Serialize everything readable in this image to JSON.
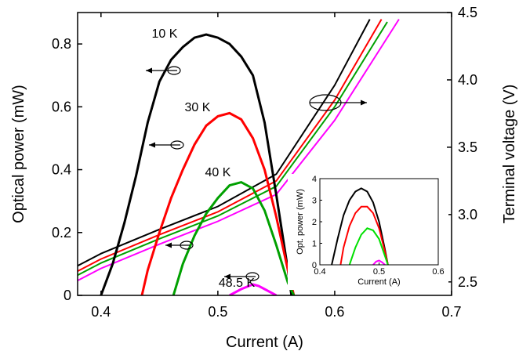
{
  "chart_data": [
    {
      "type": "line",
      "xlabel": "Current (A)",
      "ylabel_left": "Optical power (mW)",
      "ylabel_right": "Terminal voltage (V)",
      "xlim": [
        0.38,
        0.7
      ],
      "ylim_left": [
        0,
        0.9
      ],
      "ylim_right": [
        2.4,
        4.5
      ],
      "x_ticks": [
        "0.4",
        "0.5",
        "0.6",
        "0.7"
      ],
      "y_left_ticks": [
        "0",
        "0.2",
        "0.4",
        "0.6",
        "0.8"
      ],
      "y_right_ticks": [
        "2.5",
        "3.0",
        "3.5",
        "4.0",
        "4.5"
      ],
      "annotations": [
        "10 K",
        "30 K",
        "40 K",
        "48.5 K"
      ],
      "power_series": [
        {
          "color": "#000000",
          "x": [
            0.4,
            0.41,
            0.42,
            0.43,
            0.44,
            0.45,
            0.46,
            0.47,
            0.48,
            0.49,
            0.5,
            0.51,
            0.52,
            0.53,
            0.54,
            0.55,
            0.56,
            0.563
          ],
          "y": [
            0.0,
            0.1,
            0.23,
            0.38,
            0.55,
            0.68,
            0.75,
            0.79,
            0.82,
            0.83,
            0.82,
            0.8,
            0.76,
            0.7,
            0.55,
            0.32,
            0.08,
            0.0
          ]
        },
        {
          "color": "#ff0000",
          "x": [
            0.435,
            0.44,
            0.45,
            0.46,
            0.47,
            0.48,
            0.49,
            0.5,
            0.51,
            0.52,
            0.53,
            0.54,
            0.55,
            0.56,
            0.565
          ],
          "y": [
            0.0,
            0.08,
            0.2,
            0.31,
            0.4,
            0.48,
            0.54,
            0.57,
            0.58,
            0.56,
            0.5,
            0.4,
            0.25,
            0.08,
            0.0
          ]
        },
        {
          "color": "#00a000",
          "x": [
            0.462,
            0.47,
            0.48,
            0.49,
            0.5,
            0.51,
            0.52,
            0.53,
            0.54,
            0.55,
            0.56,
            0.565
          ],
          "y": [
            0.0,
            0.1,
            0.19,
            0.26,
            0.31,
            0.35,
            0.36,
            0.34,
            0.27,
            0.16,
            0.04,
            0.0
          ]
        },
        {
          "color": "#ff00ff",
          "x": [
            0.51,
            0.52,
            0.53,
            0.535,
            0.54,
            0.55
          ],
          "y": [
            0.0,
            0.02,
            0.035,
            0.03,
            0.02,
            0.0
          ]
        }
      ],
      "voltage_series": [
        {
          "color": "#000000",
          "x": [
            0.38,
            0.4,
            0.45,
            0.5,
            0.55,
            0.6,
            0.63
          ],
          "y": [
            2.62,
            2.71,
            2.89,
            3.06,
            3.3,
            3.96,
            4.45
          ]
        },
        {
          "color": "#ff0000",
          "x": [
            0.38,
            0.4,
            0.45,
            0.5,
            0.55,
            0.6,
            0.64
          ],
          "y": [
            2.58,
            2.67,
            2.85,
            3.02,
            3.25,
            3.85,
            4.45
          ]
        },
        {
          "color": "#00a000",
          "x": [
            0.38,
            0.4,
            0.45,
            0.5,
            0.55,
            0.6,
            0.645
          ],
          "y": [
            2.55,
            2.64,
            2.82,
            2.99,
            3.21,
            3.8,
            4.43
          ]
        },
        {
          "color": "#ff00ff",
          "x": [
            0.38,
            0.4,
            0.45,
            0.5,
            0.55,
            0.6,
            0.655
          ],
          "y": [
            2.51,
            2.6,
            2.78,
            2.95,
            3.15,
            3.7,
            4.45
          ]
        }
      ]
    },
    {
      "type": "line",
      "inset": true,
      "xlabel": "Current (A)",
      "ylabel": "Opt. power (mW)",
      "xlim": [
        0.4,
        0.6
      ],
      "ylim": [
        0,
        4
      ],
      "x_ticks": [
        "0.4",
        "0.5",
        "0.6"
      ],
      "y_ticks": [
        "0",
        "1",
        "2",
        "3",
        "4"
      ],
      "series": [
        {
          "color": "#000000",
          "x": [
            0.42,
            0.43,
            0.44,
            0.45,
            0.46,
            0.47,
            0.48,
            0.49,
            0.5,
            0.51,
            0.515
          ],
          "y": [
            0.0,
            1.2,
            2.3,
            3.0,
            3.4,
            3.55,
            3.4,
            2.9,
            2.0,
            0.7,
            0.0
          ]
        },
        {
          "color": "#ff0000",
          "x": [
            0.435,
            0.44,
            0.45,
            0.46,
            0.47,
            0.48,
            0.49,
            0.5,
            0.51,
            0.515
          ],
          "y": [
            0.0,
            0.8,
            1.8,
            2.4,
            2.7,
            2.7,
            2.4,
            1.7,
            0.6,
            0.0
          ]
        },
        {
          "color": "#00e000",
          "x": [
            0.45,
            0.46,
            0.47,
            0.48,
            0.49,
            0.5,
            0.51,
            0.515
          ],
          "y": [
            0.0,
            0.8,
            1.4,
            1.7,
            1.6,
            1.2,
            0.4,
            0.0
          ]
        },
        {
          "color": "#ff00ff",
          "x": [
            0.49,
            0.495,
            0.5,
            0.505,
            0.51
          ],
          "y": [
            0.0,
            0.15,
            0.2,
            0.12,
            0.0
          ]
        }
      ]
    }
  ]
}
